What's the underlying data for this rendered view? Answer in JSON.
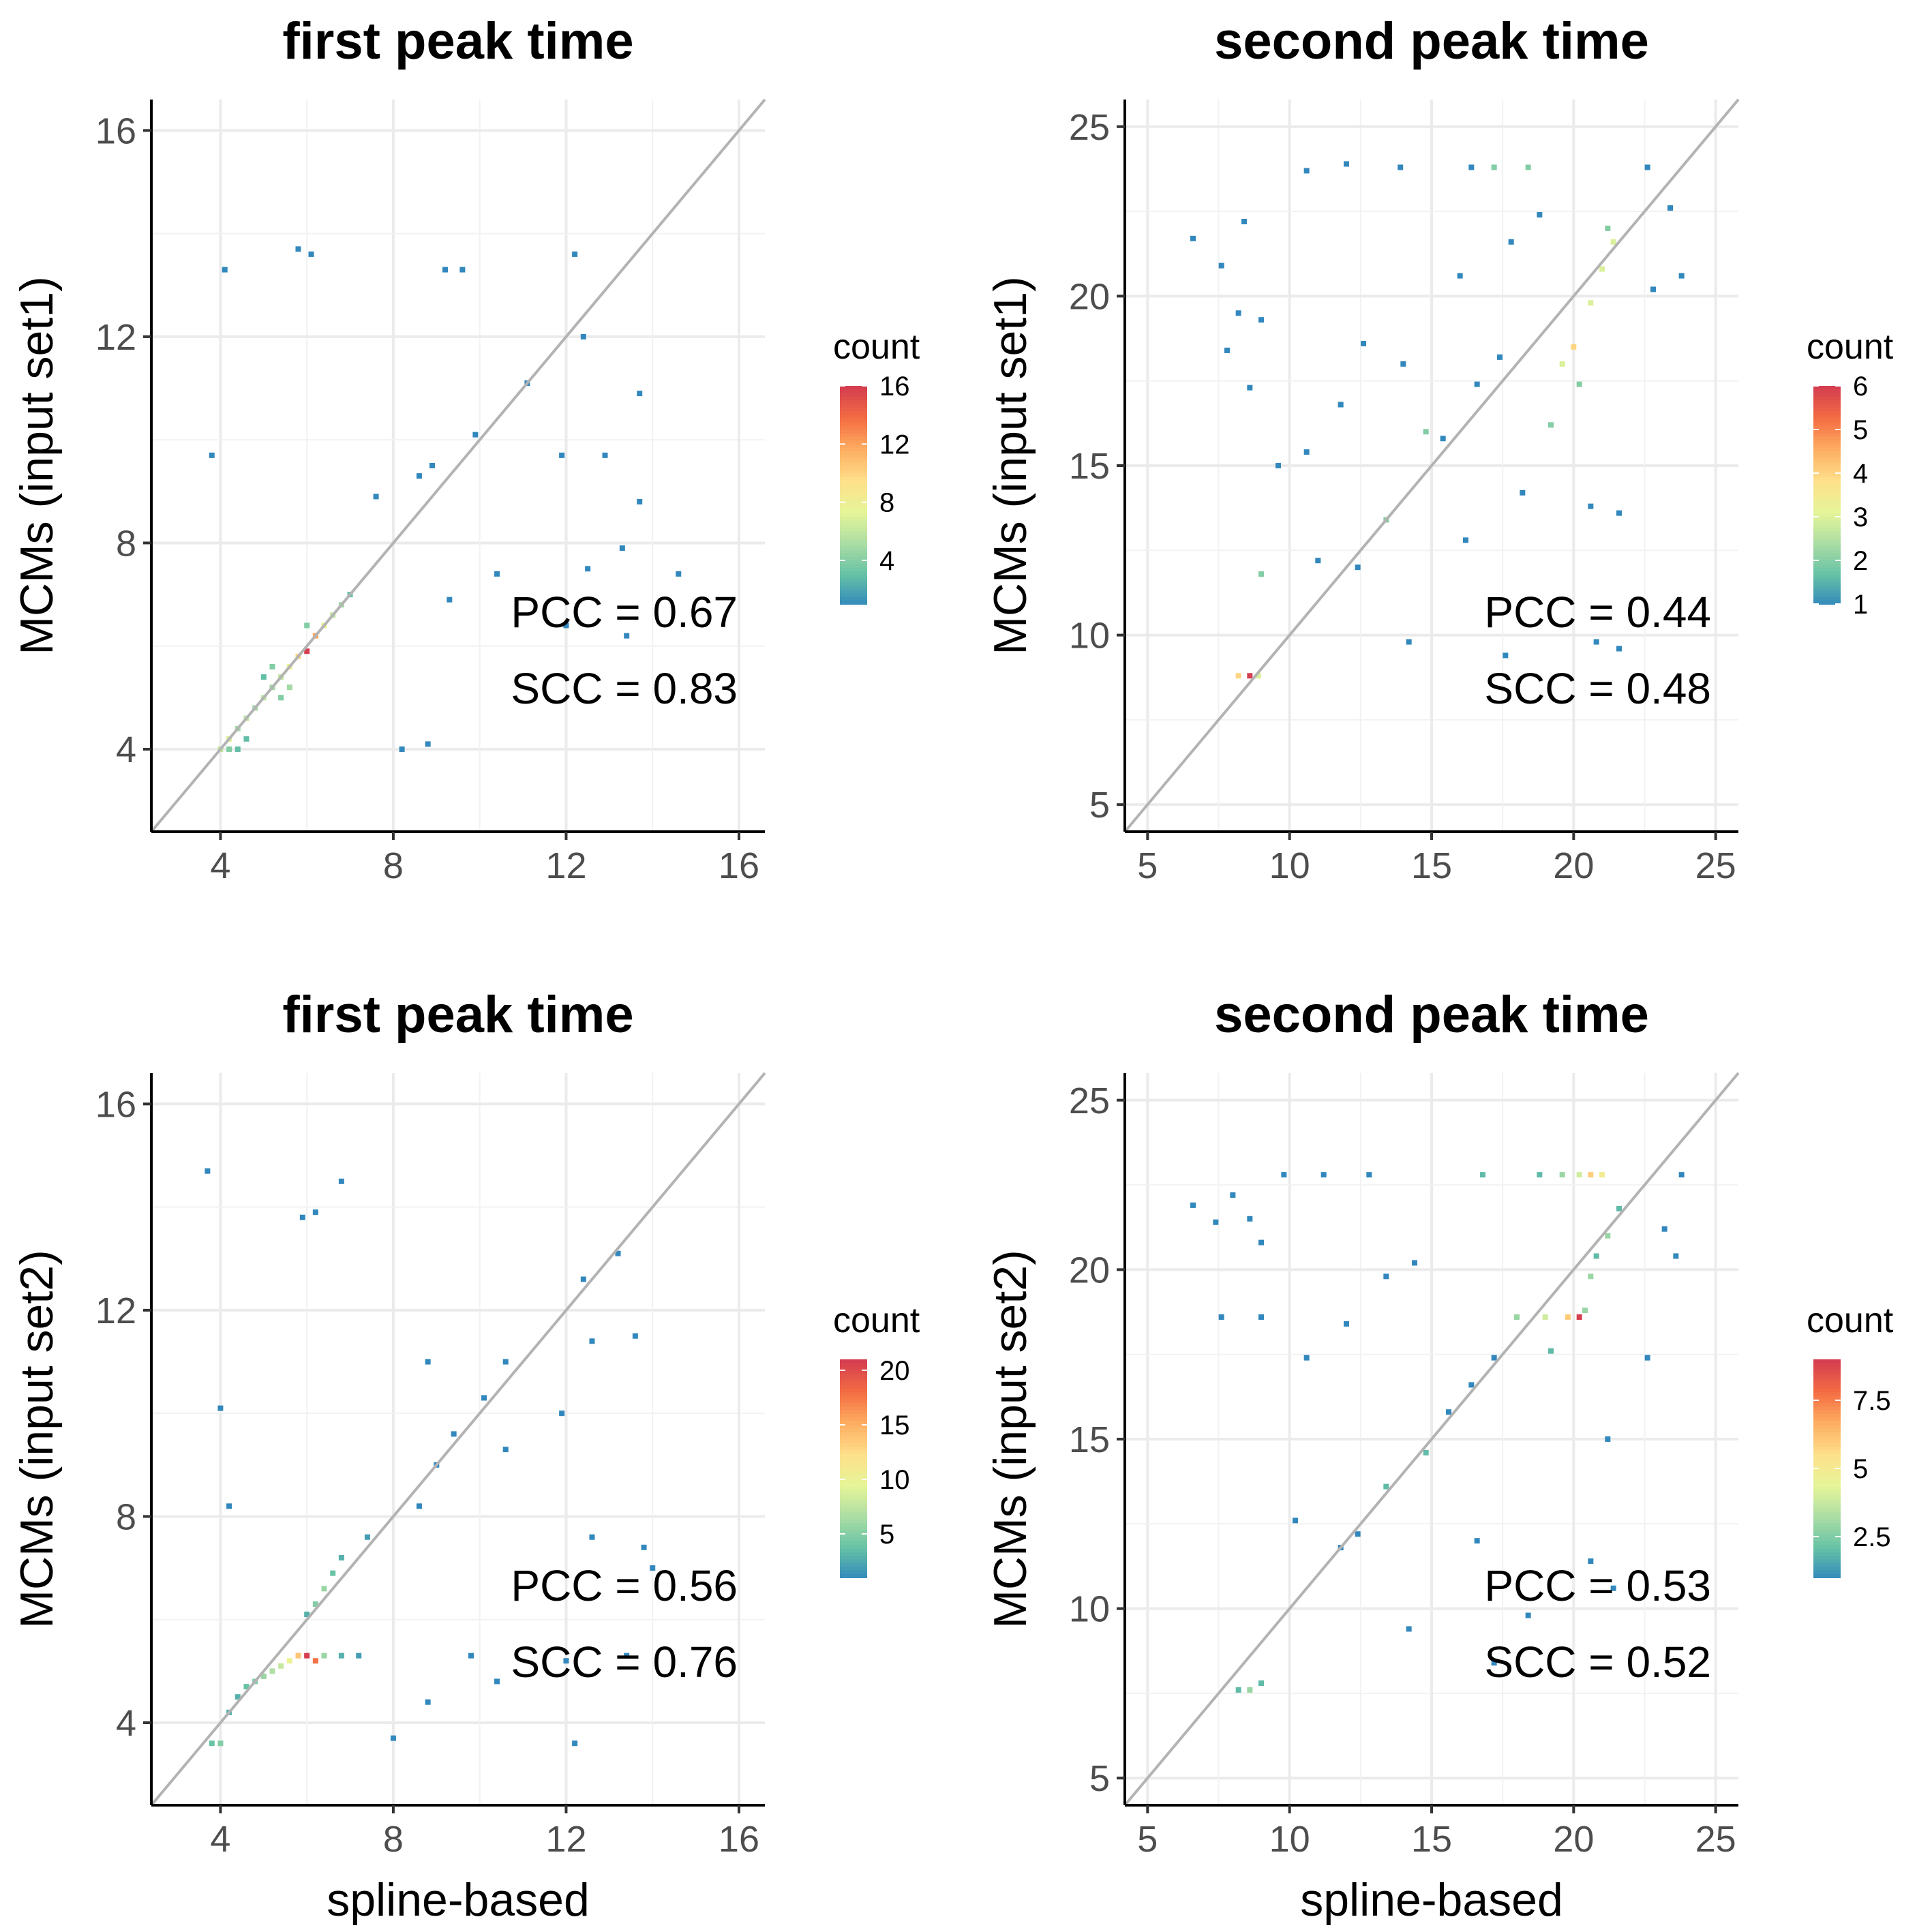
{
  "figure": {
    "legend_title": "count",
    "palette": [
      "#3288bd",
      "#66c2a5",
      "#abdda4",
      "#e6f598",
      "#fee08b",
      "#fdae61",
      "#f46d43",
      "#d53e4f"
    ]
  },
  "chart_data": [
    {
      "type": "heatmap",
      "title": "first peak time",
      "xlabel": "",
      "ylabel": "MCMs (input set1)",
      "xticks": [
        4,
        8,
        12,
        16
      ],
      "yticks": [
        4,
        8,
        12,
        16
      ],
      "xlim": [
        2.4,
        16.6
      ],
      "ylim": [
        2.4,
        16.6
      ],
      "identity_line": true,
      "grid": true,
      "annotations": [
        "PCC = 0.67",
        "SCC = 0.83"
      ],
      "legend": {
        "title": "count",
        "min": 1,
        "max": 16,
        "ticks": [
          4,
          8,
          12,
          16
        ],
        "position": "right"
      },
      "points": [
        {
          "x": 4.0,
          "y": 4.0,
          "c": 6
        },
        {
          "x": 4.2,
          "y": 4.2,
          "c": 7
        },
        {
          "x": 4.4,
          "y": 4.4,
          "c": 5
        },
        {
          "x": 4.6,
          "y": 4.6,
          "c": 6
        },
        {
          "x": 4.8,
          "y": 4.8,
          "c": 5
        },
        {
          "x": 5.0,
          "y": 5.0,
          "c": 6
        },
        {
          "x": 5.2,
          "y": 5.2,
          "c": 5
        },
        {
          "x": 5.4,
          "y": 5.4,
          "c": 6
        },
        {
          "x": 5.6,
          "y": 5.6,
          "c": 8
        },
        {
          "x": 5.8,
          "y": 5.8,
          "c": 10
        },
        {
          "x": 6.0,
          "y": 5.9,
          "c": 16
        },
        {
          "x": 6.2,
          "y": 6.2,
          "c": 12
        },
        {
          "x": 6.4,
          "y": 6.4,
          "c": 8
        },
        {
          "x": 5.2,
          "y": 5.6,
          "c": 4
        },
        {
          "x": 5.6,
          "y": 5.2,
          "c": 5
        },
        {
          "x": 4.4,
          "y": 4.0,
          "c": 3
        },
        {
          "x": 4.2,
          "y": 4.0,
          "c": 4
        },
        {
          "x": 4.6,
          "y": 4.2,
          "c": 3
        },
        {
          "x": 6.6,
          "y": 6.6,
          "c": 6
        },
        {
          "x": 6.8,
          "y": 6.8,
          "c": 5
        },
        {
          "x": 7.0,
          "y": 7.0,
          "c": 3
        },
        {
          "x": 5.4,
          "y": 5.0,
          "c": 4
        },
        {
          "x": 5.0,
          "y": 5.4,
          "c": 3
        },
        {
          "x": 6.0,
          "y": 6.4,
          "c": 4
        },
        {
          "x": 3.8,
          "y": 9.7,
          "c": 1
        },
        {
          "x": 4.1,
          "y": 13.3,
          "c": 1
        },
        {
          "x": 5.8,
          "y": 13.7,
          "c": 1
        },
        {
          "x": 6.1,
          "y": 13.6,
          "c": 1
        },
        {
          "x": 9.2,
          "y": 13.3,
          "c": 1
        },
        {
          "x": 9.6,
          "y": 13.3,
          "c": 1
        },
        {
          "x": 12.2,
          "y": 13.6,
          "c": 1
        },
        {
          "x": 12.4,
          "y": 12.0,
          "c": 1
        },
        {
          "x": 11.1,
          "y": 11.1,
          "c": 1
        },
        {
          "x": 13.7,
          "y": 10.9,
          "c": 1
        },
        {
          "x": 11.9,
          "y": 9.7,
          "c": 1
        },
        {
          "x": 12.9,
          "y": 9.7,
          "c": 1
        },
        {
          "x": 13.7,
          "y": 8.8,
          "c": 1
        },
        {
          "x": 13.3,
          "y": 7.9,
          "c": 1
        },
        {
          "x": 14.6,
          "y": 7.4,
          "c": 1
        },
        {
          "x": 12.5,
          "y": 7.5,
          "c": 1
        },
        {
          "x": 12.0,
          "y": 6.4,
          "c": 1
        },
        {
          "x": 13.4,
          "y": 6.2,
          "c": 1
        },
        {
          "x": 8.8,
          "y": 4.1,
          "c": 1
        },
        {
          "x": 8.2,
          "y": 4.0,
          "c": 1
        },
        {
          "x": 10.4,
          "y": 7.4,
          "c": 1
        },
        {
          "x": 9.3,
          "y": 6.9,
          "c": 1
        },
        {
          "x": 8.9,
          "y": 9.5,
          "c": 1
        },
        {
          "x": 8.6,
          "y": 9.3,
          "c": 1
        },
        {
          "x": 9.9,
          "y": 10.1,
          "c": 1
        },
        {
          "x": 7.6,
          "y": 8.9,
          "c": 1
        }
      ]
    },
    {
      "type": "heatmap",
      "title": "second peak time",
      "xlabel": "",
      "ylabel": "MCMs (input set1)",
      "xticks": [
        5,
        10,
        15,
        20,
        25
      ],
      "yticks": [
        5,
        10,
        15,
        20,
        25
      ],
      "xlim": [
        4.2,
        25.8
      ],
      "ylim": [
        4.2,
        25.8
      ],
      "identity_line": true,
      "grid": true,
      "annotations": [
        "PCC = 0.44",
        "SCC = 0.48"
      ],
      "legend": {
        "title": "count",
        "min": 1,
        "max": 6,
        "ticks": [
          1,
          2,
          3,
          4,
          5,
          6
        ],
        "position": "right"
      },
      "points": [
        {
          "x": 20.0,
          "y": 18.5,
          "c": 4
        },
        {
          "x": 20.6,
          "y": 19.8,
          "c": 3
        },
        {
          "x": 21.0,
          "y": 20.8,
          "c": 3
        },
        {
          "x": 21.4,
          "y": 21.6,
          "c": 3
        },
        {
          "x": 19.6,
          "y": 18.0,
          "c": 3
        },
        {
          "x": 21.2,
          "y": 22.0,
          "c": 2
        },
        {
          "x": 20.2,
          "y": 17.4,
          "c": 2
        },
        {
          "x": 19.2,
          "y": 16.2,
          "c": 2
        },
        {
          "x": 8.6,
          "y": 8.8,
          "c": 6
        },
        {
          "x": 8.2,
          "y": 8.8,
          "c": 4
        },
        {
          "x": 8.9,
          "y": 8.8,
          "c": 3
        },
        {
          "x": 18.4,
          "y": 23.8,
          "c": 2
        },
        {
          "x": 17.2,
          "y": 23.8,
          "c": 2
        },
        {
          "x": 16.4,
          "y": 23.8,
          "c": 1
        },
        {
          "x": 22.6,
          "y": 23.8,
          "c": 1
        },
        {
          "x": 13.4,
          "y": 13.4,
          "c": 2
        },
        {
          "x": 14.8,
          "y": 16.0,
          "c": 2
        },
        {
          "x": 15.4,
          "y": 15.8,
          "c": 1
        },
        {
          "x": 16.6,
          "y": 17.4,
          "c": 1
        },
        {
          "x": 17.4,
          "y": 18.2,
          "c": 1
        },
        {
          "x": 12.4,
          "y": 12.0,
          "c": 1
        },
        {
          "x": 9.0,
          "y": 11.8,
          "c": 2
        },
        {
          "x": 6.6,
          "y": 21.7,
          "c": 1
        },
        {
          "x": 7.6,
          "y": 20.9,
          "c": 1
        },
        {
          "x": 8.4,
          "y": 22.2,
          "c": 1
        },
        {
          "x": 10.6,
          "y": 23.7,
          "c": 1
        },
        {
          "x": 12.0,
          "y": 23.9,
          "c": 1
        },
        {
          "x": 13.9,
          "y": 23.8,
          "c": 1
        },
        {
          "x": 8.2,
          "y": 19.5,
          "c": 1
        },
        {
          "x": 9.0,
          "y": 19.3,
          "c": 1
        },
        {
          "x": 7.8,
          "y": 18.4,
          "c": 1
        },
        {
          "x": 8.6,
          "y": 17.3,
          "c": 1
        },
        {
          "x": 9.6,
          "y": 15.0,
          "c": 1
        },
        {
          "x": 10.6,
          "y": 15.4,
          "c": 1
        },
        {
          "x": 11.8,
          "y": 16.8,
          "c": 1
        },
        {
          "x": 12.6,
          "y": 18.6,
          "c": 1
        },
        {
          "x": 14.0,
          "y": 18.0,
          "c": 1
        },
        {
          "x": 16.0,
          "y": 20.6,
          "c": 1
        },
        {
          "x": 17.8,
          "y": 21.6,
          "c": 1
        },
        {
          "x": 18.8,
          "y": 22.4,
          "c": 1
        },
        {
          "x": 23.8,
          "y": 20.6,
          "c": 1
        },
        {
          "x": 23.4,
          "y": 22.6,
          "c": 1
        },
        {
          "x": 22.8,
          "y": 20.2,
          "c": 1
        },
        {
          "x": 20.6,
          "y": 13.8,
          "c": 1
        },
        {
          "x": 21.6,
          "y": 13.6,
          "c": 1
        },
        {
          "x": 20.8,
          "y": 9.8,
          "c": 1
        },
        {
          "x": 21.6,
          "y": 9.6,
          "c": 1
        },
        {
          "x": 17.6,
          "y": 9.4,
          "c": 1
        },
        {
          "x": 14.2,
          "y": 9.8,
          "c": 1
        },
        {
          "x": 11.0,
          "y": 12.2,
          "c": 1
        },
        {
          "x": 16.2,
          "y": 12.8,
          "c": 1
        },
        {
          "x": 18.2,
          "y": 14.2,
          "c": 1
        }
      ]
    },
    {
      "type": "heatmap",
      "title": "first peak time",
      "xlabel": "spline-based",
      "ylabel": "MCMs (input set2)",
      "xticks": [
        4,
        8,
        12,
        16
      ],
      "yticks": [
        4,
        8,
        12,
        16
      ],
      "xlim": [
        2.4,
        16.6
      ],
      "ylim": [
        2.4,
        16.6
      ],
      "identity_line": true,
      "grid": true,
      "annotations": [
        "PCC = 0.56",
        "SCC = 0.76"
      ],
      "legend": {
        "title": "count",
        "min": 1,
        "max": 21,
        "ticks": [
          5,
          10,
          15,
          20
        ],
        "position": "right"
      },
      "points": [
        {
          "x": 6.0,
          "y": 5.3,
          "c": 21
        },
        {
          "x": 6.2,
          "y": 5.2,
          "c": 18
        },
        {
          "x": 5.8,
          "y": 5.3,
          "c": 14
        },
        {
          "x": 5.6,
          "y": 5.2,
          "c": 10
        },
        {
          "x": 5.4,
          "y": 5.1,
          "c": 8
        },
        {
          "x": 5.2,
          "y": 5.0,
          "c": 7
        },
        {
          "x": 5.0,
          "y": 4.9,
          "c": 6
        },
        {
          "x": 4.8,
          "y": 4.8,
          "c": 5
        },
        {
          "x": 4.6,
          "y": 4.7,
          "c": 4
        },
        {
          "x": 4.4,
          "y": 4.5,
          "c": 3
        },
        {
          "x": 4.2,
          "y": 4.2,
          "c": 3
        },
        {
          "x": 4.0,
          "y": 3.6,
          "c": 5
        },
        {
          "x": 3.8,
          "y": 3.6,
          "c": 4
        },
        {
          "x": 6.4,
          "y": 5.3,
          "c": 6
        },
        {
          "x": 6.8,
          "y": 5.3,
          "c": 3
        },
        {
          "x": 7.2,
          "y": 5.3,
          "c": 2
        },
        {
          "x": 6.4,
          "y": 6.6,
          "c": 6
        },
        {
          "x": 6.2,
          "y": 6.3,
          "c": 5
        },
        {
          "x": 6.6,
          "y": 6.9,
          "c": 4
        },
        {
          "x": 6.0,
          "y": 6.1,
          "c": 3
        },
        {
          "x": 6.8,
          "y": 7.2,
          "c": 3
        },
        {
          "x": 7.4,
          "y": 7.6,
          "c": 2
        },
        {
          "x": 3.7,
          "y": 14.7,
          "c": 1
        },
        {
          "x": 5.9,
          "y": 13.8,
          "c": 1
        },
        {
          "x": 6.2,
          "y": 13.9,
          "c": 1
        },
        {
          "x": 6.8,
          "y": 14.5,
          "c": 1
        },
        {
          "x": 4.0,
          "y": 10.1,
          "c": 1
        },
        {
          "x": 4.2,
          "y": 8.2,
          "c": 1
        },
        {
          "x": 12.4,
          "y": 12.6,
          "c": 1
        },
        {
          "x": 13.2,
          "y": 13.1,
          "c": 1
        },
        {
          "x": 13.6,
          "y": 11.5,
          "c": 1
        },
        {
          "x": 12.6,
          "y": 11.4,
          "c": 1
        },
        {
          "x": 11.9,
          "y": 10.0,
          "c": 1
        },
        {
          "x": 12.6,
          "y": 7.6,
          "c": 1
        },
        {
          "x": 13.8,
          "y": 7.4,
          "c": 1
        },
        {
          "x": 14.0,
          "y": 7.0,
          "c": 1
        },
        {
          "x": 12.2,
          "y": 3.6,
          "c": 1
        },
        {
          "x": 10.4,
          "y": 4.8,
          "c": 1
        },
        {
          "x": 8.8,
          "y": 4.4,
          "c": 1
        },
        {
          "x": 8.0,
          "y": 3.7,
          "c": 1
        },
        {
          "x": 10.1,
          "y": 10.3,
          "c": 1
        },
        {
          "x": 9.4,
          "y": 9.6,
          "c": 1
        },
        {
          "x": 9.0,
          "y": 9.0,
          "c": 1
        },
        {
          "x": 8.6,
          "y": 8.2,
          "c": 1
        },
        {
          "x": 10.6,
          "y": 9.3,
          "c": 1
        },
        {
          "x": 12.0,
          "y": 5.2,
          "c": 1
        },
        {
          "x": 13.4,
          "y": 5.3,
          "c": 1
        },
        {
          "x": 9.8,
          "y": 5.3,
          "c": 1
        },
        {
          "x": 8.8,
          "y": 11.0,
          "c": 1
        },
        {
          "x": 10.6,
          "y": 11.0,
          "c": 1
        }
      ]
    },
    {
      "type": "heatmap",
      "title": "second peak time",
      "xlabel": "spline-based",
      "ylabel": "MCMs (input set2)",
      "xticks": [
        5,
        10,
        15,
        20,
        25
      ],
      "yticks": [
        5,
        10,
        15,
        20,
        25
      ],
      "xlim": [
        4.2,
        25.8
      ],
      "ylim": [
        4.2,
        25.8
      ],
      "identity_line": true,
      "grid": true,
      "annotations": [
        "PCC = 0.53",
        "SCC = 0.52"
      ],
      "legend": {
        "title": "count",
        "min": 1,
        "max": 9,
        "ticks": [
          2.5,
          5.0,
          7.5
        ],
        "position": "right"
      },
      "points": [
        {
          "x": 20.2,
          "y": 18.6,
          "c": 9
        },
        {
          "x": 19.8,
          "y": 18.6,
          "c": 6
        },
        {
          "x": 19.0,
          "y": 18.6,
          "c": 4
        },
        {
          "x": 18.0,
          "y": 18.6,
          "c": 3
        },
        {
          "x": 20.6,
          "y": 22.8,
          "c": 6
        },
        {
          "x": 21.0,
          "y": 22.8,
          "c": 5
        },
        {
          "x": 20.2,
          "y": 22.8,
          "c": 4
        },
        {
          "x": 19.6,
          "y": 22.8,
          "c": 3
        },
        {
          "x": 18.8,
          "y": 22.8,
          "c": 2
        },
        {
          "x": 16.8,
          "y": 22.8,
          "c": 2
        },
        {
          "x": 20.6,
          "y": 19.8,
          "c": 3
        },
        {
          "x": 21.2,
          "y": 21.0,
          "c": 3
        },
        {
          "x": 20.4,
          "y": 18.8,
          "c": 3
        },
        {
          "x": 20.8,
          "y": 20.4,
          "c": 2
        },
        {
          "x": 21.6,
          "y": 21.8,
          "c": 2
        },
        {
          "x": 19.2,
          "y": 17.6,
          "c": 2
        },
        {
          "x": 14.8,
          "y": 14.6,
          "c": 2
        },
        {
          "x": 13.4,
          "y": 13.6,
          "c": 2
        },
        {
          "x": 8.6,
          "y": 7.6,
          "c": 3
        },
        {
          "x": 8.2,
          "y": 7.6,
          "c": 2
        },
        {
          "x": 9.0,
          "y": 7.8,
          "c": 2
        },
        {
          "x": 15.6,
          "y": 15.8,
          "c": 1
        },
        {
          "x": 16.4,
          "y": 16.6,
          "c": 1
        },
        {
          "x": 17.2,
          "y": 17.4,
          "c": 1
        },
        {
          "x": 12.4,
          "y": 12.2,
          "c": 1
        },
        {
          "x": 11.8,
          "y": 11.8,
          "c": 1
        },
        {
          "x": 6.6,
          "y": 21.9,
          "c": 1
        },
        {
          "x": 7.4,
          "y": 21.4,
          "c": 1
        },
        {
          "x": 8.0,
          "y": 22.2,
          "c": 1
        },
        {
          "x": 8.6,
          "y": 21.5,
          "c": 1
        },
        {
          "x": 9.0,
          "y": 20.8,
          "c": 1
        },
        {
          "x": 9.8,
          "y": 22.8,
          "c": 1
        },
        {
          "x": 11.2,
          "y": 22.8,
          "c": 1
        },
        {
          "x": 12.8,
          "y": 22.8,
          "c": 1
        },
        {
          "x": 7.6,
          "y": 18.6,
          "c": 1
        },
        {
          "x": 9.0,
          "y": 18.6,
          "c": 1
        },
        {
          "x": 10.6,
          "y": 17.4,
          "c": 1
        },
        {
          "x": 12.0,
          "y": 18.4,
          "c": 1
        },
        {
          "x": 13.4,
          "y": 19.8,
          "c": 1
        },
        {
          "x": 14.4,
          "y": 20.2,
          "c": 1
        },
        {
          "x": 23.8,
          "y": 22.8,
          "c": 1
        },
        {
          "x": 23.2,
          "y": 21.2,
          "c": 1
        },
        {
          "x": 23.6,
          "y": 20.4,
          "c": 1
        },
        {
          "x": 22.6,
          "y": 17.4,
          "c": 1
        },
        {
          "x": 21.2,
          "y": 15.0,
          "c": 1
        },
        {
          "x": 20.6,
          "y": 11.4,
          "c": 1
        },
        {
          "x": 21.4,
          "y": 10.6,
          "c": 1
        },
        {
          "x": 18.4,
          "y": 9.8,
          "c": 1
        },
        {
          "x": 14.2,
          "y": 9.4,
          "c": 1
        },
        {
          "x": 16.6,
          "y": 12.0,
          "c": 1
        },
        {
          "x": 17.2,
          "y": 8.4,
          "c": 1
        },
        {
          "x": 10.2,
          "y": 12.6,
          "c": 1
        }
      ]
    }
  ]
}
